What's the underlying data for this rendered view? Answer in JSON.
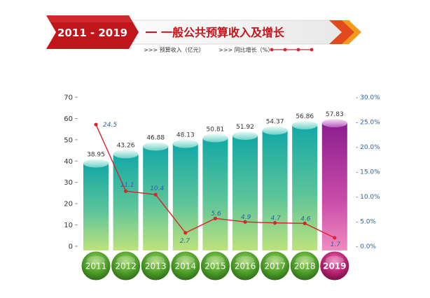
{
  "header": {
    "years_label": "2011 - 2019",
    "title": "一般公共预算收入及增长"
  },
  "legend": {
    "bar_label": ">>> 预算收入（亿元）",
    "line_label": ">>> 同比增长（%）"
  },
  "colors": {
    "bar_top": "#12a8a6",
    "bar_bottom": "#b8e07a",
    "highlight_top": "#8a1f8e",
    "highlight_bottom": "#f07ab8",
    "line": "#d9242b",
    "percent_text": "#2b63a8",
    "banner_red": "#c0151b",
    "year_circle": "#4a9a2a",
    "year_circle_highlight": "#b0206a"
  },
  "chart_data": {
    "type": "bar",
    "categories": [
      "2011",
      "2012",
      "2013",
      "2014",
      "2015",
      "2016",
      "2017",
      "2018",
      "2019"
    ],
    "highlight_category": "2019",
    "series": [
      {
        "name": "预算收入（亿元）",
        "type": "bar",
        "axis": "left",
        "values": [
          38.95,
          43.26,
          46.88,
          48.13,
          50.81,
          51.92,
          54.37,
          56.86,
          57.83
        ],
        "labels": [
          "38.95",
          "43.26",
          "46.88",
          "48.13",
          "50.81",
          "51.92",
          "54.37",
          "56.86",
          "57.83"
        ]
      },
      {
        "name": "同比增长（%）",
        "type": "line",
        "axis": "right",
        "values": [
          24.5,
          11.1,
          10.4,
          2.7,
          5.6,
          4.9,
          4.7,
          4.6,
          1.7
        ],
        "labels": [
          "24.5",
          "11.1",
          "10.4",
          "2.7",
          "5.6",
          "4.9",
          "4.7",
          "4.6",
          "1.7"
        ]
      }
    ],
    "y_left": {
      "range": [
        0,
        70
      ],
      "ticks": [
        0,
        10,
        20,
        30,
        40,
        50,
        60,
        70
      ],
      "tick_labels": [
        "0",
        "10",
        "20",
        "30",
        "40",
        "50",
        "60",
        "70"
      ]
    },
    "y_right": {
      "range": [
        0,
        30
      ],
      "ticks": [
        0,
        5,
        10,
        15,
        20,
        25,
        30
      ],
      "tick_labels": [
        "- 0.0%",
        "- 5.0%",
        "- 10.0%",
        "- 15.0%",
        "- 20.0%",
        "- 25.0%",
        "- 30.0%"
      ]
    },
    "grid": false,
    "legend_position": "top-left"
  }
}
